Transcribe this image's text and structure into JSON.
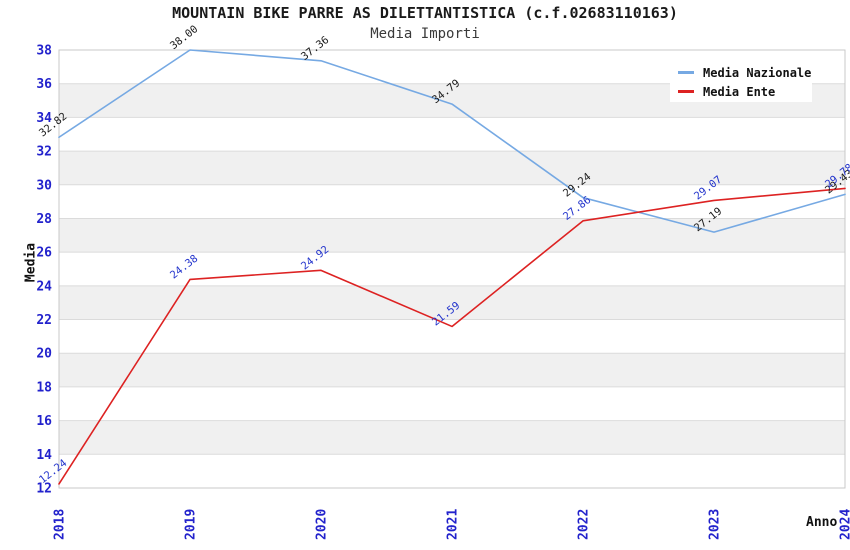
{
  "chart_data": {
    "type": "line",
    "title": "MOUNTAIN BIKE PARRE AS DILETTANTISTICA (c.f.02683110163)",
    "subtitle": "Media Importi",
    "xlabel": "Anno",
    "ylabel": "Media",
    "categories": [
      "2018",
      "2019",
      "2020",
      "2021",
      "2022",
      "2023",
      "2024"
    ],
    "series": [
      {
        "name": "Media Nazionale",
        "color": "#76A9E3",
        "label_color": "#1a1a1a",
        "values": [
          32.82,
          38.0,
          37.36,
          34.79,
          29.24,
          27.19,
          29.43
        ]
      },
      {
        "name": "Media Ente",
        "color": "#DD2222",
        "label_color": "#2233CC",
        "values": [
          12.24,
          24.38,
          24.92,
          21.59,
          27.86,
          29.07,
          29.78
        ]
      }
    ],
    "ylim": [
      12,
      38
    ],
    "ytick_step": 2,
    "yticks": [
      12,
      14,
      16,
      18,
      20,
      22,
      24,
      26,
      28,
      30,
      32,
      34,
      36,
      38
    ],
    "grid": "horizontal-bands",
    "legend_position": "top-right",
    "styles": {
      "tick_label_color": "#2222CC",
      "band_color": "#F0F0F0",
      "gridline_color": "#DBDBDB",
      "border_color": "#C9C9C9",
      "background": "#FFFFFF"
    }
  }
}
